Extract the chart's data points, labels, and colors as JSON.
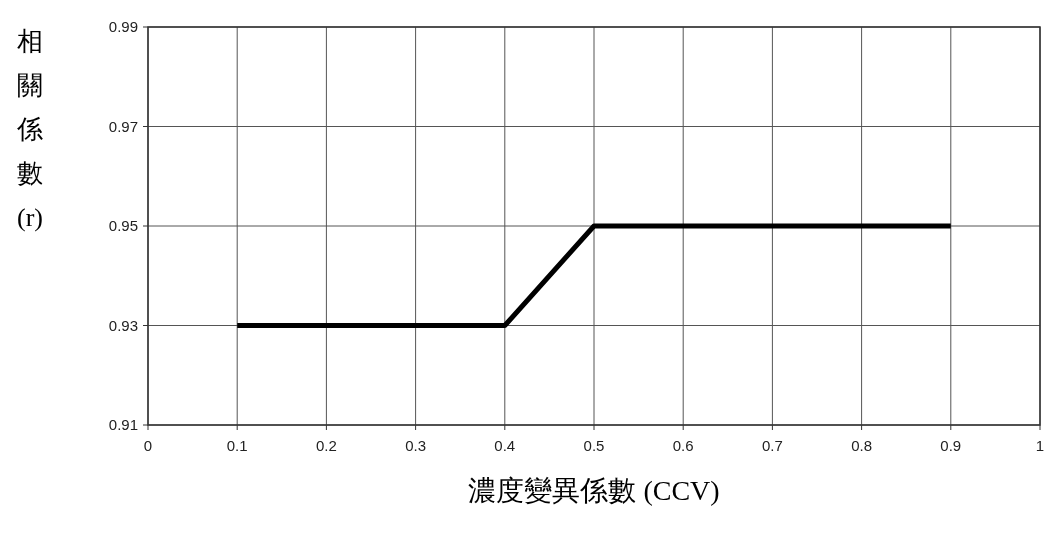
{
  "chart_data": {
    "type": "line",
    "xlabel": "濃度變異係數 (CCV)",
    "ylabel": "相關係數(r)",
    "x": [
      0.1,
      0.4,
      0.5,
      0.9
    ],
    "series": [
      {
        "color": "#000000",
        "values": [
          0.93,
          0.93,
          0.95,
          0.95
        ]
      }
    ],
    "xlim": [
      0,
      1
    ],
    "xticks": [
      0,
      0.1,
      0.2,
      0.3,
      0.4,
      0.5,
      0.6,
      0.7,
      0.8,
      0.9,
      1
    ],
    "ylim": [
      0.91,
      0.99
    ],
    "yticks": [
      {
        "value": 0.91,
        "label": "0.91"
      },
      {
        "value": 0.93,
        "label": "0.93"
      },
      {
        "value": 0.95,
        "label": "0.95"
      },
      {
        "value": 0.97,
        "label": "0.97"
      },
      {
        "value": 0.99,
        "label": "0.99"
      }
    ],
    "grid": true,
    "marker": "none",
    "line_style": "solid"
  }
}
